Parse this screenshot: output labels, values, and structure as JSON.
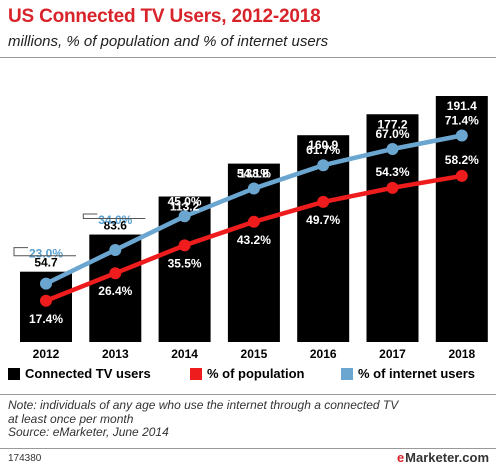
{
  "header": {
    "title": "US Connected TV Users, 2012-2018",
    "subtitle": "millions, % of population and % of internet users"
  },
  "colors": {
    "title": "#d8232a",
    "bars": "#000000",
    "population_line": "#ee1c1c",
    "internet_line": "#6aa6d0",
    "internet_label": "#5aa0d0"
  },
  "legend": {
    "bars": "Connected TV users",
    "population": "% of population",
    "internet": "% of internet users"
  },
  "note": {
    "line1": "Note: individuals of any age who use the internet through a connected TV",
    "line2": "at least once per month",
    "source": "Source: eMarketer, June 2014"
  },
  "footer": {
    "id": "174380",
    "brand_mark": "e",
    "brand_name": "Marketer",
    "brand_suffix": ".com"
  },
  "chart_data": {
    "type": "bar",
    "categories": [
      "2012",
      "2013",
      "2014",
      "2015",
      "2016",
      "2017",
      "2018"
    ],
    "series": [
      {
        "name": "Connected TV users",
        "type": "bar",
        "values": [
          54.7,
          83.6,
          113.2,
          138.8,
          160.9,
          177.2,
          191.4
        ],
        "labels": [
          "54.7",
          "83.6",
          "113.2",
          "138.8",
          "160.9",
          "177.2",
          "191.4"
        ]
      },
      {
        "name": "% of population",
        "type": "line",
        "values": [
          17.4,
          26.4,
          35.5,
          43.2,
          49.7,
          54.3,
          58.2
        ],
        "labels": [
          "17.4%",
          "26.4%",
          "35.5%",
          "43.2%",
          "49.7%",
          "54.3%",
          "58.2%"
        ]
      },
      {
        "name": "% of internet users",
        "type": "line",
        "values": [
          23.0,
          34.0,
          45.0,
          54.1,
          61.7,
          67.0,
          71.4
        ],
        "labels": [
          "23.0%",
          "34.0%",
          "45.0%",
          "54.1%",
          "61.7%",
          "67.0%",
          "71.4%"
        ]
      }
    ],
    "grid": false,
    "legend_position": "bottom"
  }
}
